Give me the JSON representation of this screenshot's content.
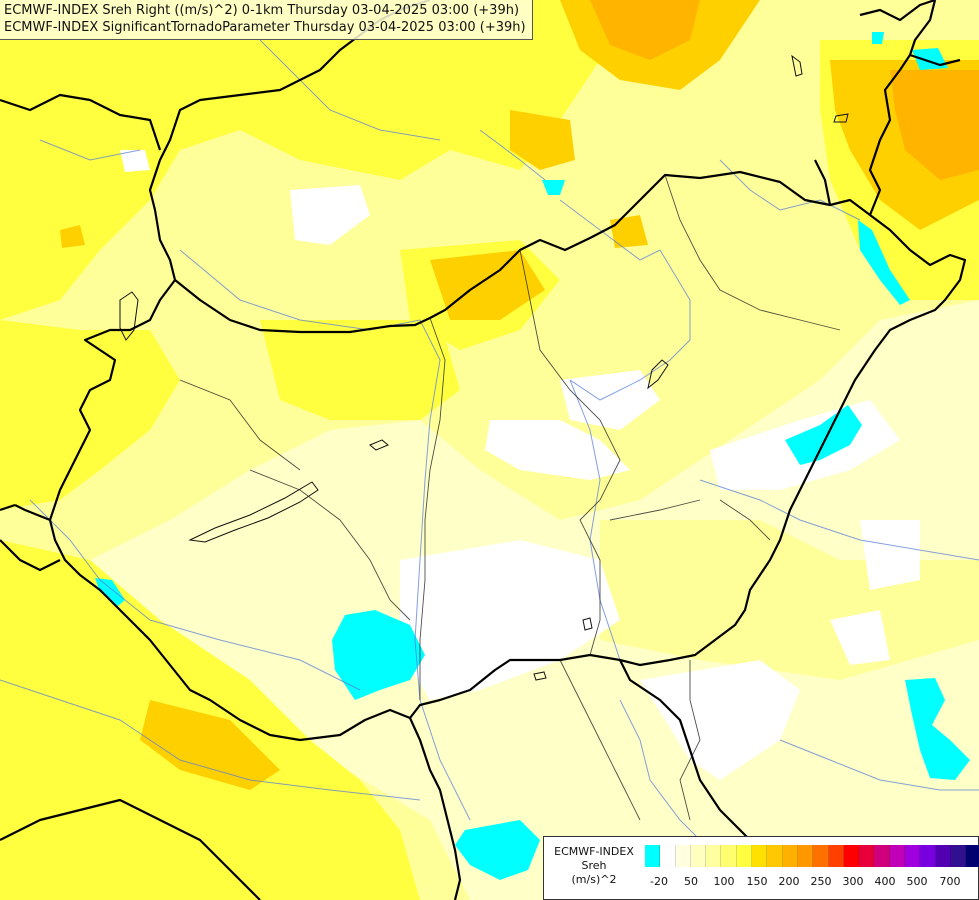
{
  "title": {
    "line1": "ECMWF-INDEX Sreh Right ((m/s)^2) 0-1km Thursday 03-04-2025 03:00 (+39h)",
    "line2": "ECMWF-INDEX SignificantTornadoParameter Thursday 03-04-2025 03:00 (+39h)"
  },
  "legend": {
    "line1": "ECMWF-INDEX",
    "line2": "Sreh",
    "line3": "(m/s)^2",
    "colors": [
      "#00ffff",
      "#ffffff",
      "#ffffe0",
      "#ffffc0",
      "#ffffa0",
      "#ffff70",
      "#ffff40",
      "#ffe000",
      "#ffc800",
      "#ffb000",
      "#ff9800",
      "#ff7000",
      "#ff4000",
      "#ff0000",
      "#e8003c",
      "#d0007c",
      "#c000b8",
      "#a000e0",
      "#7800e0",
      "#5000b0",
      "#301090",
      "#000070"
    ],
    "ticks": [
      "-20",
      "50",
      "100",
      "150",
      "200",
      "250",
      "300",
      "400",
      "500",
      "700"
    ]
  },
  "map": {
    "region": "Hungary and surroundings",
    "fill_colors": {
      "cyan": "#00ffff",
      "white": "#ffffff",
      "pale": "#ffffc8",
      "light_yellow": "#ffff9a",
      "yellow": "#ffff40",
      "deep_yellow": "#ffe800",
      "orange": "#ffc800",
      "dark_orange": "#ffb000"
    }
  }
}
